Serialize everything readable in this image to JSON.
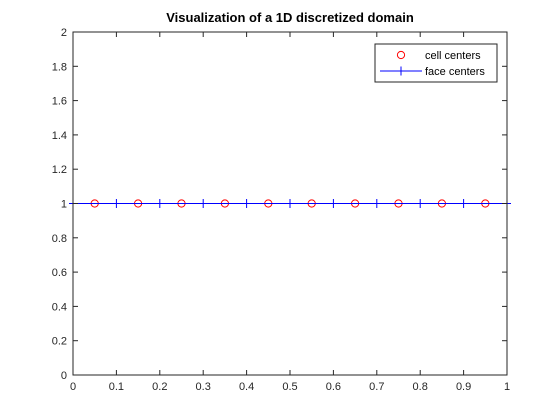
{
  "chart_data": {
    "type": "scatter",
    "title": "Visualization of a 1D discretized domain",
    "xlabel": "",
    "ylabel": "",
    "xlim": [
      0,
      1
    ],
    "ylim": [
      0,
      2
    ],
    "xticks": [
      0,
      0.1,
      0.2,
      0.3,
      0.4,
      0.5,
      0.6,
      0.7,
      0.8,
      0.9,
      1
    ],
    "xtick_labels": [
      "0",
      "0.1",
      "0.2",
      "0.3",
      "0.4",
      "0.5",
      "0.6",
      "0.7",
      "0.8",
      "0.9",
      "1"
    ],
    "yticks": [
      0,
      0.2,
      0.4,
      0.6,
      0.8,
      1,
      1.2,
      1.4,
      1.6,
      1.8,
      2
    ],
    "ytick_labels": [
      "0",
      "0.2",
      "0.4",
      "0.6",
      "0.8",
      "1",
      "1.2",
      "1.4",
      "1.6",
      "1.8",
      "2"
    ],
    "grid": false,
    "legend_position": "top-right",
    "series": [
      {
        "name": "cell centers",
        "marker": "circle",
        "line": false,
        "color": "#ff0000",
        "x": [
          0.05,
          0.15,
          0.25,
          0.35,
          0.45,
          0.55,
          0.65,
          0.75,
          0.85,
          0.95
        ],
        "y": [
          1,
          1,
          1,
          1,
          1,
          1,
          1,
          1,
          1,
          1
        ]
      },
      {
        "name": "face centers",
        "marker": "plus",
        "line": true,
        "color": "#0000ff",
        "x": [
          0,
          0.1,
          0.2,
          0.3,
          0.4,
          0.5,
          0.6,
          0.7,
          0.8,
          0.9,
          1
        ],
        "y": [
          1,
          1,
          1,
          1,
          1,
          1,
          1,
          1,
          1,
          1,
          1
        ]
      }
    ]
  }
}
